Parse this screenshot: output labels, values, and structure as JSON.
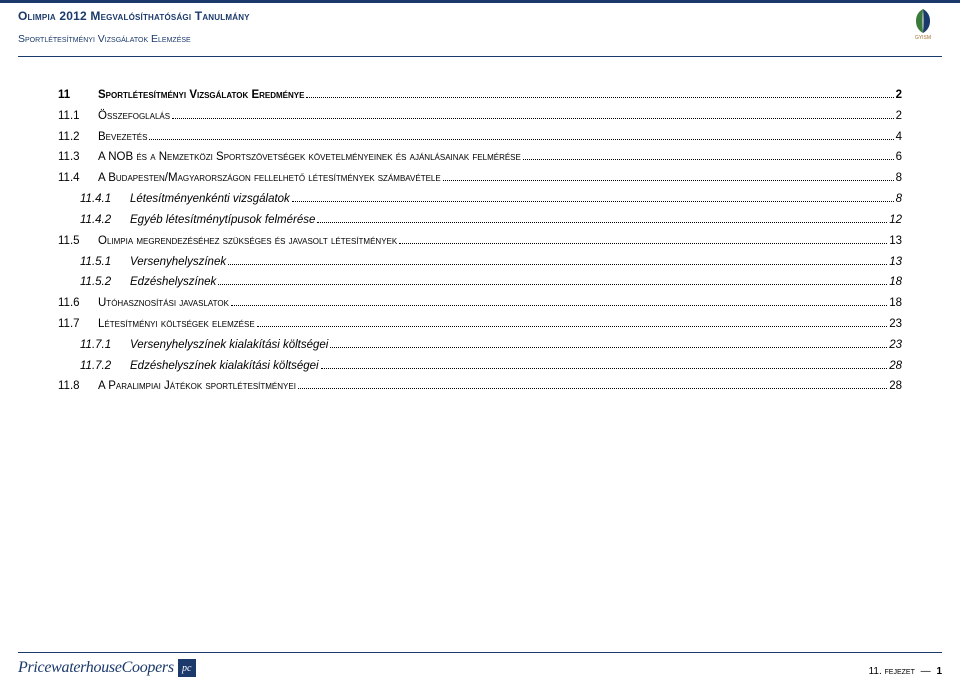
{
  "header": {
    "title": "Olimpia 2012 Megvalósíthatósági Tanulmány",
    "subtitle": "Sportlétesítményi Vizsgálatok Elemzése",
    "logo_text": "GYISM"
  },
  "toc": [
    {
      "level": 1,
      "bold": true,
      "num": "11",
      "text": "Sportlétesítményi Vizsgálatok Eredménye",
      "page": "2"
    },
    {
      "level": 1,
      "bold": false,
      "num": "11.1",
      "text": "Összefoglalás",
      "page": "2"
    },
    {
      "level": 1,
      "bold": false,
      "num": "11.2",
      "text": "Bevezetés",
      "page": "4"
    },
    {
      "level": 1,
      "bold": false,
      "num": "11.3",
      "text": "A NOB és a Nemzetközi Sportszövetségek követelményeinek és ajánlásainak felmérése",
      "page": "6"
    },
    {
      "level": 1,
      "bold": false,
      "num": "11.4",
      "text": "A Budapesten/Magyarországon fellelhető létesítmények számbavétele",
      "page": "8"
    },
    {
      "level": 2,
      "bold": false,
      "num": "11.4.1",
      "text": "Létesítményenkénti vizsgálatok",
      "page": "8"
    },
    {
      "level": 2,
      "bold": false,
      "num": "11.4.2",
      "text": "Egyéb létesítménytípusok felmérése",
      "page": "12"
    },
    {
      "level": 1,
      "bold": false,
      "num": "11.5",
      "text": "Olimpia megrendezéséhez szükséges és javasolt létesítmények",
      "page": "13"
    },
    {
      "level": 2,
      "bold": false,
      "num": "11.5.1",
      "text": "Versenyhelyszínek",
      "page": "13"
    },
    {
      "level": 2,
      "bold": false,
      "num": "11.5.2",
      "text": "Edzéshelyszínek",
      "page": "18"
    },
    {
      "level": 1,
      "bold": false,
      "num": "11.6",
      "text": "Utóhasznosítási javaslatok",
      "page": "18"
    },
    {
      "level": 1,
      "bold": false,
      "num": "11.7",
      "text": "Létesítményi költségek elemzése",
      "page": "23"
    },
    {
      "level": 2,
      "bold": false,
      "num": "11.7.1",
      "text": "Versenyhelyszínek kialakítási költségei",
      "page": "23"
    },
    {
      "level": 2,
      "bold": false,
      "num": "11.7.2",
      "text": "Edzéshelyszínek kialakítási költségei",
      "page": "28"
    },
    {
      "level": 1,
      "bold": false,
      "num": "11.8",
      "text": "A Paralimpiai Játékok sportlétesítményei",
      "page": "28"
    }
  ],
  "footer": {
    "brand": "PricewaterhouseCoopers",
    "mark": "pc",
    "chapter_label": "11. fejezet",
    "dash": "—",
    "page_num": "1"
  },
  "colors": {
    "primary": "#1b3a6b",
    "logo_accent": "#a07030",
    "leaf_green": "#3a7a3a",
    "leaf_dark": "#1b3a6b",
    "text": "#000000",
    "background": "#ffffff"
  }
}
